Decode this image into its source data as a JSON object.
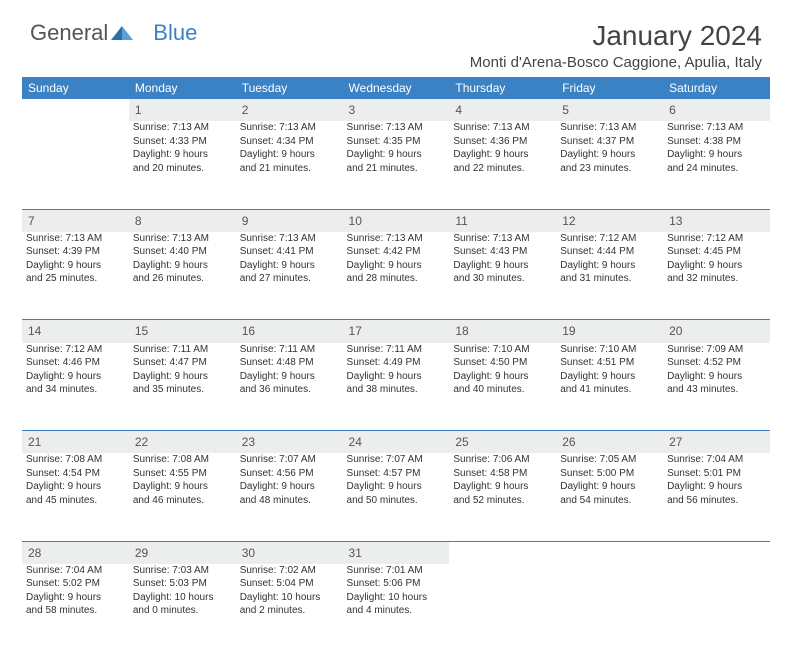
{
  "brand": {
    "part1": "General",
    "part2": "Blue"
  },
  "title": "January 2024",
  "location": "Monti d'Arena-Bosco Caggione, Apulia, Italy",
  "day_headers": [
    "Sunday",
    "Monday",
    "Tuesday",
    "Wednesday",
    "Thursday",
    "Friday",
    "Saturday"
  ],
  "colors": {
    "header_bg": "#3b82c4",
    "header_fg": "#ffffff",
    "daynum_bg": "#eceded",
    "row_divider": "#3b82c4",
    "text": "#333333",
    "page_bg": "#ffffff"
  },
  "typography": {
    "title_fontsize_pt": 21,
    "location_fontsize_pt": 11,
    "header_fontsize_pt": 9,
    "body_fontsize_pt": 7.5,
    "daynum_fontsize_pt": 9
  },
  "weeks": [
    [
      null,
      {
        "n": "1",
        "sr": "Sunrise: 7:13 AM",
        "ss": "Sunset: 4:33 PM",
        "d1": "Daylight: 9 hours",
        "d2": "and 20 minutes."
      },
      {
        "n": "2",
        "sr": "Sunrise: 7:13 AM",
        "ss": "Sunset: 4:34 PM",
        "d1": "Daylight: 9 hours",
        "d2": "and 21 minutes."
      },
      {
        "n": "3",
        "sr": "Sunrise: 7:13 AM",
        "ss": "Sunset: 4:35 PM",
        "d1": "Daylight: 9 hours",
        "d2": "and 21 minutes."
      },
      {
        "n": "4",
        "sr": "Sunrise: 7:13 AM",
        "ss": "Sunset: 4:36 PM",
        "d1": "Daylight: 9 hours",
        "d2": "and 22 minutes."
      },
      {
        "n": "5",
        "sr": "Sunrise: 7:13 AM",
        "ss": "Sunset: 4:37 PM",
        "d1": "Daylight: 9 hours",
        "d2": "and 23 minutes."
      },
      {
        "n": "6",
        "sr": "Sunrise: 7:13 AM",
        "ss": "Sunset: 4:38 PM",
        "d1": "Daylight: 9 hours",
        "d2": "and 24 minutes."
      }
    ],
    [
      {
        "n": "7",
        "sr": "Sunrise: 7:13 AM",
        "ss": "Sunset: 4:39 PM",
        "d1": "Daylight: 9 hours",
        "d2": "and 25 minutes."
      },
      {
        "n": "8",
        "sr": "Sunrise: 7:13 AM",
        "ss": "Sunset: 4:40 PM",
        "d1": "Daylight: 9 hours",
        "d2": "and 26 minutes."
      },
      {
        "n": "9",
        "sr": "Sunrise: 7:13 AM",
        "ss": "Sunset: 4:41 PM",
        "d1": "Daylight: 9 hours",
        "d2": "and 27 minutes."
      },
      {
        "n": "10",
        "sr": "Sunrise: 7:13 AM",
        "ss": "Sunset: 4:42 PM",
        "d1": "Daylight: 9 hours",
        "d2": "and 28 minutes."
      },
      {
        "n": "11",
        "sr": "Sunrise: 7:13 AM",
        "ss": "Sunset: 4:43 PM",
        "d1": "Daylight: 9 hours",
        "d2": "and 30 minutes."
      },
      {
        "n": "12",
        "sr": "Sunrise: 7:12 AM",
        "ss": "Sunset: 4:44 PM",
        "d1": "Daylight: 9 hours",
        "d2": "and 31 minutes."
      },
      {
        "n": "13",
        "sr": "Sunrise: 7:12 AM",
        "ss": "Sunset: 4:45 PM",
        "d1": "Daylight: 9 hours",
        "d2": "and 32 minutes."
      }
    ],
    [
      {
        "n": "14",
        "sr": "Sunrise: 7:12 AM",
        "ss": "Sunset: 4:46 PM",
        "d1": "Daylight: 9 hours",
        "d2": "and 34 minutes."
      },
      {
        "n": "15",
        "sr": "Sunrise: 7:11 AM",
        "ss": "Sunset: 4:47 PM",
        "d1": "Daylight: 9 hours",
        "d2": "and 35 minutes."
      },
      {
        "n": "16",
        "sr": "Sunrise: 7:11 AM",
        "ss": "Sunset: 4:48 PM",
        "d1": "Daylight: 9 hours",
        "d2": "and 36 minutes."
      },
      {
        "n": "17",
        "sr": "Sunrise: 7:11 AM",
        "ss": "Sunset: 4:49 PM",
        "d1": "Daylight: 9 hours",
        "d2": "and 38 minutes."
      },
      {
        "n": "18",
        "sr": "Sunrise: 7:10 AM",
        "ss": "Sunset: 4:50 PM",
        "d1": "Daylight: 9 hours",
        "d2": "and 40 minutes."
      },
      {
        "n": "19",
        "sr": "Sunrise: 7:10 AM",
        "ss": "Sunset: 4:51 PM",
        "d1": "Daylight: 9 hours",
        "d2": "and 41 minutes."
      },
      {
        "n": "20",
        "sr": "Sunrise: 7:09 AM",
        "ss": "Sunset: 4:52 PM",
        "d1": "Daylight: 9 hours",
        "d2": "and 43 minutes."
      }
    ],
    [
      {
        "n": "21",
        "sr": "Sunrise: 7:08 AM",
        "ss": "Sunset: 4:54 PM",
        "d1": "Daylight: 9 hours",
        "d2": "and 45 minutes."
      },
      {
        "n": "22",
        "sr": "Sunrise: 7:08 AM",
        "ss": "Sunset: 4:55 PM",
        "d1": "Daylight: 9 hours",
        "d2": "and 46 minutes."
      },
      {
        "n": "23",
        "sr": "Sunrise: 7:07 AM",
        "ss": "Sunset: 4:56 PM",
        "d1": "Daylight: 9 hours",
        "d2": "and 48 minutes."
      },
      {
        "n": "24",
        "sr": "Sunrise: 7:07 AM",
        "ss": "Sunset: 4:57 PM",
        "d1": "Daylight: 9 hours",
        "d2": "and 50 minutes."
      },
      {
        "n": "25",
        "sr": "Sunrise: 7:06 AM",
        "ss": "Sunset: 4:58 PM",
        "d1": "Daylight: 9 hours",
        "d2": "and 52 minutes."
      },
      {
        "n": "26",
        "sr": "Sunrise: 7:05 AM",
        "ss": "Sunset: 5:00 PM",
        "d1": "Daylight: 9 hours",
        "d2": "and 54 minutes."
      },
      {
        "n": "27",
        "sr": "Sunrise: 7:04 AM",
        "ss": "Sunset: 5:01 PM",
        "d1": "Daylight: 9 hours",
        "d2": "and 56 minutes."
      }
    ],
    [
      {
        "n": "28",
        "sr": "Sunrise: 7:04 AM",
        "ss": "Sunset: 5:02 PM",
        "d1": "Daylight: 9 hours",
        "d2": "and 58 minutes."
      },
      {
        "n": "29",
        "sr": "Sunrise: 7:03 AM",
        "ss": "Sunset: 5:03 PM",
        "d1": "Daylight: 10 hours",
        "d2": "and 0 minutes."
      },
      {
        "n": "30",
        "sr": "Sunrise: 7:02 AM",
        "ss": "Sunset: 5:04 PM",
        "d1": "Daylight: 10 hours",
        "d2": "and 2 minutes."
      },
      {
        "n": "31",
        "sr": "Sunrise: 7:01 AM",
        "ss": "Sunset: 5:06 PM",
        "d1": "Daylight: 10 hours",
        "d2": "and 4 minutes."
      },
      null,
      null,
      null
    ]
  ]
}
